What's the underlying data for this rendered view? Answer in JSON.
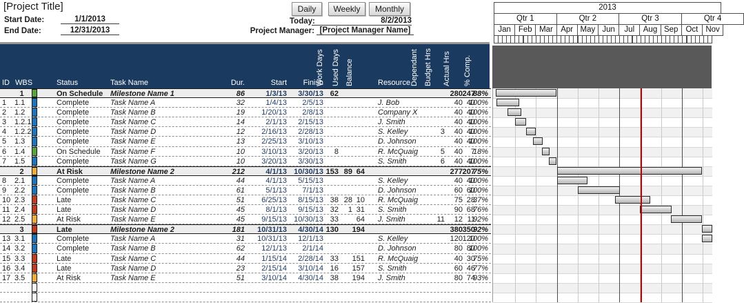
{
  "header": {
    "title": "[Project Title]",
    "start_date_label": "Start Date:",
    "start_date": "1/1/2013",
    "end_date_label": "End Date:",
    "end_date": "12/31/2013",
    "buttons": {
      "daily": "Daily",
      "weekly": "Weekly",
      "monthly": "Monthly"
    },
    "today_label": "Today:",
    "today": "8/2/2013",
    "pm_label": "Project Manager:",
    "pm": "[Project Manager Name]"
  },
  "timeline": {
    "year": "2013",
    "quarters": [
      "Qtr 1",
      "Qtr 2",
      "Qtr 3",
      "Qtr 4"
    ],
    "months": [
      "Jan",
      "Feb",
      "Mar",
      "Apr",
      "May",
      "Jun",
      "Jul",
      "Aug",
      "Sep",
      "Oct",
      "Nov"
    ],
    "week_ticks": 52,
    "today_marker_date": "8/2/13"
  },
  "columns": {
    "id": "ID",
    "wbs": "WBS",
    "status": "Status",
    "task": "Task Name",
    "dur": "Dur.",
    "start": "Start",
    "finish": "Finish",
    "work": "Work Days",
    "used": "Used Days",
    "bal": "Balance",
    "res": "Resource",
    "dep": "Dependant",
    "budget": "Budget Hrs",
    "actual": "Actual Hrs",
    "comp": "% Comp."
  },
  "status_colors": {
    "green": "#58A43C",
    "blue": "#1B75BE",
    "yellow": "#F0AD33",
    "red": "#C23B1D",
    "empty": "#FFFFFF"
  },
  "accent": {
    "header_bg": "#1b3a5f",
    "band_bg": "#595959",
    "today_line": "#C00000"
  },
  "rows": [
    {
      "m": 1,
      "id": "",
      "wbs": "1",
      "color": "green",
      "status": "On Schedule",
      "task": "Milestone Name 1",
      "dur": "86",
      "start": "1/3/13",
      "finish": "3/30/13",
      "work": "62",
      "used": "",
      "bal": "",
      "res": "",
      "dep": "",
      "budget": "280",
      "actual": "247",
      "comp": "88%"
    },
    {
      "m": 0,
      "id": "1",
      "wbs": "1.1",
      "color": "blue",
      "status": "Complete",
      "task": "Task Name A",
      "dur": "32",
      "start": "1/4/13",
      "finish": "2/5/13",
      "work": "",
      "used": "",
      "bal": "",
      "res": "J. Bob",
      "dep": "",
      "budget": "40",
      "actual": "40",
      "comp": "100%"
    },
    {
      "m": 0,
      "id": "2",
      "wbs": "1.2",
      "color": "blue",
      "status": "Complete",
      "task": "Task Name B",
      "dur": "19",
      "start": "1/20/13",
      "finish": "2/8/13",
      "work": "",
      "used": "",
      "bal": "",
      "res": "Company X",
      "dep": "",
      "budget": "40",
      "actual": "40",
      "comp": "100%"
    },
    {
      "m": 0,
      "id": "3",
      "wbs": "1.2.1",
      "color": "blue",
      "status": "Complete",
      "task": "Task Name C",
      "dur": "14",
      "start": "2/1/13",
      "finish": "2/15/13",
      "work": "",
      "used": "",
      "bal": "",
      "res": "J. Smith",
      "dep": "",
      "budget": "40",
      "actual": "40",
      "comp": "100%"
    },
    {
      "m": 0,
      "id": "4",
      "wbs": "1.2.2",
      "color": "blue",
      "status": "Complete",
      "task": "Task Name D",
      "dur": "12",
      "start": "2/16/13",
      "finish": "2/28/13",
      "work": "",
      "used": "",
      "bal": "",
      "res": "S. Kelley",
      "dep": "3",
      "budget": "40",
      "actual": "40",
      "comp": "100%"
    },
    {
      "m": 0,
      "id": "5",
      "wbs": "1.3",
      "color": "blue",
      "status": "Complete",
      "task": "Task Name E",
      "dur": "13",
      "start": "2/25/13",
      "finish": "3/10/13",
      "work": "",
      "used": "",
      "bal": "",
      "res": "D. Johnson",
      "dep": "",
      "budget": "40",
      "actual": "40",
      "comp": "100%"
    },
    {
      "m": 0,
      "id": "6",
      "wbs": "1.4",
      "color": "green",
      "status": "On Schedule",
      "task": "Task Name F",
      "dur": "10",
      "start": "3/10/13",
      "finish": "3/20/13",
      "work": "8",
      "used": "",
      "bal": "",
      "res": "R. McQuaig",
      "dep": "5",
      "budget": "40",
      "actual": "7",
      "comp": "18%"
    },
    {
      "m": 0,
      "id": "7",
      "wbs": "1.5",
      "color": "blue",
      "status": "Complete",
      "task": "Task Name G",
      "dur": "10",
      "start": "3/20/13",
      "finish": "3/30/13",
      "work": "",
      "used": "",
      "bal": "",
      "res": "S. Smith",
      "dep": "6",
      "budget": "40",
      "actual": "40",
      "comp": "100%"
    },
    {
      "m": 1,
      "id": "",
      "wbs": "2",
      "color": "yellow",
      "status": "At Risk",
      "task": "Milestone Name 2",
      "dur": "212",
      "start": "4/1/13",
      "finish": "10/30/13",
      "work": "153",
      "used": "89",
      "bal": "64",
      "res": "",
      "dep": "",
      "budget": "277",
      "actual": "207",
      "comp": "75%"
    },
    {
      "m": 0,
      "id": "8",
      "wbs": "2.1",
      "color": "blue",
      "status": "Complete",
      "task": "Task Name A",
      "dur": "44",
      "start": "4/1/13",
      "finish": "5/15/13",
      "work": "",
      "used": "",
      "bal": "",
      "res": "S. Kelley",
      "dep": "",
      "budget": "40",
      "actual": "40",
      "comp": "100%"
    },
    {
      "m": 0,
      "id": "9",
      "wbs": "2.2",
      "color": "blue",
      "status": "Complete",
      "task": "Task Name B",
      "dur": "61",
      "start": "5/1/13",
      "finish": "7/1/13",
      "work": "",
      "used": "",
      "bal": "",
      "res": "D. Johnson",
      "dep": "",
      "budget": "60",
      "actual": "60",
      "comp": "100%"
    },
    {
      "m": 0,
      "id": "10",
      "wbs": "2.3",
      "color": "red",
      "status": "Late",
      "task": "Task Name C",
      "dur": "51",
      "start": "6/25/13",
      "finish": "8/15/13",
      "work": "38",
      "used": "28",
      "bal": "10",
      "res": "R. McQuaig",
      "dep": "",
      "budget": "75",
      "actual": "28",
      "comp": "37%"
    },
    {
      "m": 0,
      "id": "11",
      "wbs": "2.4",
      "color": "red",
      "status": "Late",
      "task": "Task Name D",
      "dur": "45",
      "start": "8/1/13",
      "finish": "9/15/13",
      "work": "32",
      "used": "1",
      "bal": "31",
      "res": "S. Smith",
      "dep": "",
      "budget": "90",
      "actual": "68",
      "comp": "76%"
    },
    {
      "m": 0,
      "id": "12",
      "wbs": "2.5",
      "color": "yellow",
      "status": "At Risk",
      "task": "Task Name E",
      "dur": "45",
      "start": "9/15/13",
      "finish": "10/30/13",
      "work": "33",
      "used": "",
      "bal": "64",
      "res": "J. Smith",
      "dep": "11",
      "budget": "12",
      "actual": "11",
      "comp": "92%"
    },
    {
      "m": 1,
      "id": "",
      "wbs": "3",
      "color": "red",
      "status": "Late",
      "task": "Milestone Name 2",
      "dur": "181",
      "start": "10/31/13",
      "finish": "4/30/14",
      "work": "130",
      "used": "",
      "bal": "194",
      "res": "",
      "dep": "",
      "budget": "380",
      "actual": "350",
      "comp": "92%"
    },
    {
      "m": 0,
      "id": "13",
      "wbs": "3.1",
      "color": "blue",
      "status": "Complete",
      "task": "Task Name A",
      "dur": "31",
      "start": "10/31/13",
      "finish": "12/1/13",
      "work": "",
      "used": "",
      "bal": "",
      "res": "S. Kelley",
      "dep": "",
      "budget": "120",
      "actual": "120",
      "comp": "100%"
    },
    {
      "m": 0,
      "id": "14",
      "wbs": "3.2",
      "color": "blue",
      "status": "Complete",
      "task": "Task Name B",
      "dur": "62",
      "start": "12/1/13",
      "finish": "2/1/14",
      "work": "",
      "used": "",
      "bal": "",
      "res": "D. Johnson",
      "dep": "",
      "budget": "80",
      "actual": "80",
      "comp": "100%"
    },
    {
      "m": 0,
      "id": "15",
      "wbs": "3.3",
      "color": "red",
      "status": "Late",
      "task": "Task Name C",
      "dur": "44",
      "start": "1/15/14",
      "finish": "2/28/14",
      "work": "33",
      "used": "",
      "bal": "151",
      "res": "R. McQuaig",
      "dep": "",
      "budget": "40",
      "actual": "30",
      "comp": "75%"
    },
    {
      "m": 0,
      "id": "16",
      "wbs": "3.4",
      "color": "red",
      "status": "Late",
      "task": "Task Name D",
      "dur": "23",
      "start": "2/15/14",
      "finish": "3/10/14",
      "work": "16",
      "used": "",
      "bal": "157",
      "res": "S. Smith",
      "dep": "",
      "budget": "60",
      "actual": "46",
      "comp": "77%"
    },
    {
      "m": 0,
      "id": "17",
      "wbs": "3.5",
      "color": "yellow",
      "status": "At Risk",
      "task": "Task Name E",
      "dur": "51",
      "start": "3/10/14",
      "finish": "4/30/14",
      "work": "38",
      "used": "",
      "bal": "194",
      "res": "J. Smith",
      "dep": "",
      "budget": "80",
      "actual": "74",
      "comp": "93%"
    },
    {
      "m": 0,
      "id": "",
      "wbs": "",
      "color": "empty",
      "status": "",
      "task": "",
      "dur": "",
      "start": "",
      "finish": "",
      "work": "",
      "used": "",
      "bal": "",
      "res": "",
      "dep": "",
      "budget": "",
      "actual": "",
      "comp": ""
    },
    {
      "m": 0,
      "id": "",
      "wbs": "",
      "color": "empty",
      "status": "",
      "task": "",
      "dur": "",
      "start": "",
      "finish": "",
      "work": "",
      "used": "",
      "bal": "",
      "res": "",
      "dep": "",
      "budget": "",
      "actual": "",
      "comp": ""
    }
  ]
}
